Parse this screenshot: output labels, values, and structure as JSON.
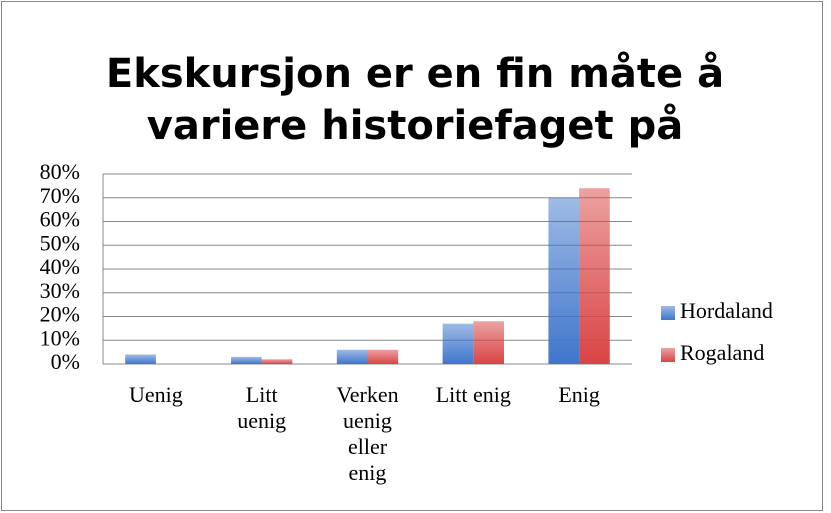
{
  "chart_data": {
    "type": "bar",
    "title": "Ekskursjon er en fin måte å\nvariere historiefaget på",
    "categories": [
      "Uenig",
      "Litt\nuenig",
      "Verken\nuenig\neller\nenig",
      "Litt enig",
      "Enig"
    ],
    "series": [
      {
        "name": "Hordaland",
        "color": "#3f76cc",
        "values": [
          4,
          3,
          6,
          17,
          70
        ]
      },
      {
        "name": "Rogaland",
        "color": "#d94444",
        "values": [
          0,
          2,
          6,
          18,
          74
        ]
      }
    ],
    "ylim": [
      0,
      80
    ],
    "yticks": [
      {
        "value": 0,
        "label": "0%"
      },
      {
        "value": 10,
        "label": "10%"
      },
      {
        "value": 20,
        "label": "20%"
      },
      {
        "value": 30,
        "label": "30%"
      },
      {
        "value": 40,
        "label": "40%"
      },
      {
        "value": 50,
        "label": "50%"
      },
      {
        "value": 60,
        "label": "60%"
      },
      {
        "value": 70,
        "label": "70%"
      },
      {
        "value": 80,
        "label": "80%"
      }
    ],
    "grid": true,
    "legend": "right"
  }
}
